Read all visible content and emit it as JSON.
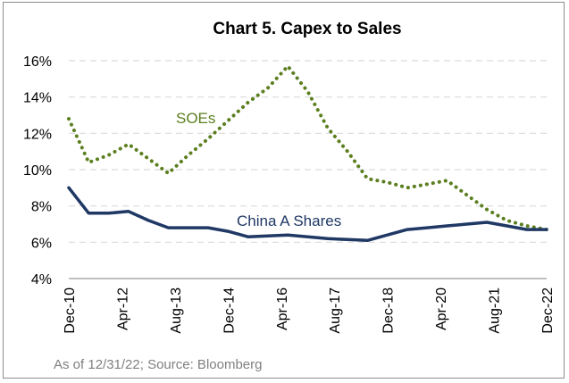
{
  "chart_data": {
    "type": "line",
    "title": "Chart 5. Capex to Sales",
    "xlabel": "",
    "ylabel": "",
    "ylim": [
      4,
      16
    ],
    "y_ticks": [
      "4%",
      "6%",
      "8%",
      "10%",
      "12%",
      "14%",
      "16%"
    ],
    "x_ticks": [
      "Dec-10",
      "Apr-12",
      "Aug-13",
      "Dec-14",
      "Apr-16",
      "Aug-17",
      "Dec-18",
      "Apr-20",
      "Aug-21",
      "Dec-22"
    ],
    "grid": "horizontal dashed",
    "x": [
      "Dec-10",
      "Jun-11",
      "Dec-11",
      "Jun-12",
      "Dec-12",
      "Jun-13",
      "Dec-13",
      "Jun-14",
      "Dec-14",
      "Jun-15",
      "Dec-15",
      "Jun-16",
      "Dec-16",
      "Jun-17",
      "Dec-17",
      "Jun-18",
      "Dec-18",
      "Jun-19",
      "Dec-19",
      "Jun-20",
      "Dec-20",
      "Jun-21",
      "Dec-21",
      "Jun-22",
      "Dec-22"
    ],
    "series": [
      {
        "name": "SOEs",
        "color": "#5b7f1f",
        "style": "dotted",
        "values": [
          12.8,
          10.4,
          10.8,
          11.4,
          10.6,
          9.8,
          10.8,
          11.7,
          12.7,
          13.7,
          14.5,
          15.7,
          14.3,
          12.3,
          11.0,
          9.5,
          9.3,
          9.0,
          9.2,
          9.4,
          8.6,
          7.8,
          7.2,
          6.9,
          6.7
        ]
      },
      {
        "name": "China A Shares",
        "color": "#1f3864",
        "style": "solid",
        "values": [
          9.0,
          7.6,
          7.6,
          7.7,
          7.2,
          6.8,
          6.8,
          6.8,
          6.6,
          6.3,
          6.35,
          6.4,
          6.3,
          6.2,
          6.15,
          6.1,
          6.4,
          6.7,
          6.8,
          6.9,
          7.0,
          7.1,
          6.9,
          6.7,
          6.7
        ]
      }
    ],
    "note": "As of 12/31/22; Source: Bloomberg"
  },
  "colors": {
    "grid": "#d9d9d9",
    "axis": "#808080",
    "soe": "#5b7f1f",
    "china": "#1f3864"
  }
}
